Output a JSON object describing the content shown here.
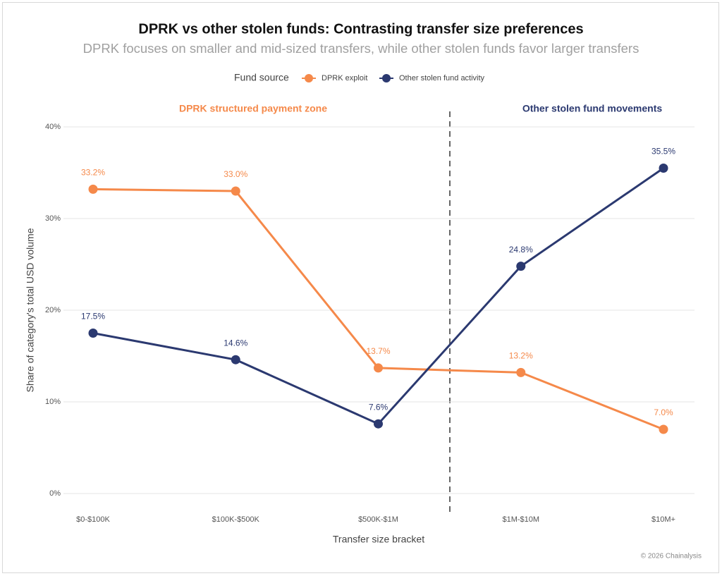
{
  "chart_data": {
    "type": "line",
    "title": "DPRK vs other stolen funds: Contrasting transfer size preferences",
    "subtitle": "DPRK focuses on smaller and mid-sized transfers, while other stolen funds favor larger transfers",
    "legend_title": "Fund source",
    "x_label": "Transfer size bracket",
    "y_label": "Share of category's total USD volume",
    "categories": [
      "$0-$100K",
      "$100K-$500K",
      "$500K-$1M",
      "$1M-$10M",
      "$10M+"
    ],
    "series": [
      {
        "name": "DPRK exploit",
        "color": "#f5894a",
        "values": [
          33.2,
          33.0,
          13.7,
          13.2,
          7.0
        ],
        "value_labels": [
          "33.2%",
          "33.0%",
          "13.7%",
          "13.2%",
          "7.0%"
        ]
      },
      {
        "name": "Other stolen fund activity",
        "color": "#2b3970",
        "values": [
          17.5,
          14.6,
          7.6,
          24.8,
          35.5
        ],
        "value_labels": [
          "17.5%",
          "14.6%",
          "7.6%",
          "24.8%",
          "35.5%"
        ]
      }
    ],
    "annotations": [
      {
        "text": "DPRK structured payment zone",
        "color": "#f5894a"
      },
      {
        "text": "Other stolen fund movements",
        "color": "#2b3970"
      }
    ],
    "ylim": [
      -2,
      42
    ],
    "yticks": [
      {
        "value": 0,
        "label": "0%"
      },
      {
        "value": 10,
        "label": "10%"
      },
      {
        "value": 20,
        "label": "20%"
      },
      {
        "value": 30,
        "label": "30%"
      },
      {
        "value": 40,
        "label": "40%"
      }
    ],
    "grid": true,
    "source": "© 2026 Chainalysis"
  }
}
